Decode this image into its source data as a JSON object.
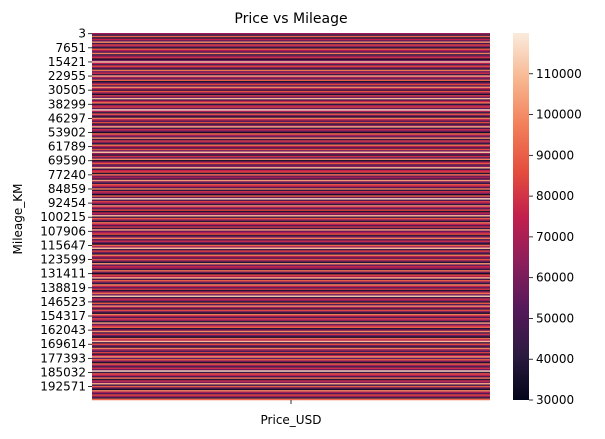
{
  "chart_data": {
    "type": "heatmap",
    "title": "Price vs Mileage",
    "xlabel": "",
    "ylabel": "Mileage_KM",
    "x_categories": [
      "Price_USD"
    ],
    "y_tick_labels": [
      "3",
      "7651",
      "15421",
      "22955",
      "30505",
      "38299",
      "46297",
      "53902",
      "61789",
      "69590",
      "77240",
      "84859",
      "92454",
      "100215",
      "107906",
      "115647",
      "123599",
      "131411",
      "138819",
      "146523",
      "154317",
      "162043",
      "169614",
      "177393",
      "185032",
      "192571"
    ],
    "row_count": 260,
    "values": [
      68000,
      45000,
      92000,
      38000,
      75000,
      55000,
      101000,
      47000,
      83000,
      62000,
      39000,
      88000,
      71000,
      52000,
      97000,
      44000,
      66000,
      79000,
      35000,
      58000,
      112000,
      73000,
      49000,
      86000,
      64000,
      41000,
      95000,
      57000,
      78000,
      46000,
      105000,
      69000,
      53000,
      90000,
      37000,
      61000,
      84000,
      50000,
      99000,
      72000,
      43000,
      87000,
      65000,
      36000,
      80000,
      56000,
      109000,
      48000,
      76000,
      93000,
      40000,
      67000,
      82000,
      54000,
      115000,
      70000,
      45000,
      89000,
      60000,
      38000,
      96000,
      74000,
      51000,
      85000,
      42000,
      63000,
      104000,
      47000,
      77000,
      59000,
      34000,
      91000,
      68000,
      55000,
      100000,
      44000,
      81000,
      62000,
      39000,
      94000,
      72000,
      48000,
      86000,
      57000,
      111000,
      66000,
      41000,
      79000,
      53000,
      98000,
      36000,
      70000,
      88000,
      50000,
      63000,
      107000,
      45000,
      75000,
      84000,
      38000,
      92000,
      58000,
      69000,
      47000,
      102000,
      61000,
      43000,
      87000,
      73000,
      52000,
      96000,
      40000,
      78000,
      64000,
      35000,
      90000,
      56000,
      114000,
      49000,
      82000,
      67000,
      42000,
      99000,
      71000,
      54000,
      85000,
      37000,
      76000,
      60000,
      108000,
      46000,
      89000,
      65000,
      39000,
      93000,
      74000,
      51000,
      80000,
      44000,
      103000,
      57000,
      70000,
      86000,
      41000,
      62000,
      97000,
      48000,
      79000,
      55000,
      36000,
      91000,
      68000,
      110000,
      45000,
      83000,
      59000,
      40000,
      95000,
      72000,
      50000,
      87000,
      63000,
      38000,
      101000,
      54000,
      77000,
      66000,
      43000,
      92000,
      58000,
      34000,
      84000,
      71000,
      106000,
      47000,
      89000,
      61000,
      42000,
      98000,
      75000,
      52000,
      81000,
      37000,
      69000,
      94000,
      56000,
      113000,
      46000,
      78000,
      64000,
      39000,
      88000,
      53000,
      100000,
      70000,
      44000,
      85000,
      60000,
      35000,
      96000,
      73000,
      49000,
      82000,
      66000,
      41000,
      104000,
      57000,
      76000,
      90000,
      38000,
      62000,
      99000,
      48000,
      80000,
      55000,
      36000,
      93000,
      71000,
      109000,
      45000,
      86000,
      59000,
      42000,
      97000,
      67000,
      51000,
      83000,
      40000,
      74000,
      102000,
      54000,
      88000,
      63000,
      37000,
      91000,
      68000,
      47000,
      79000,
      58000,
      116000,
      43000,
      85000,
      72000,
      50000,
      95000,
      39000,
      77000,
      61000,
      105000,
      46000,
      89000,
      56000,
      34000,
      98000,
      70000,
      52000,
      84000,
      65000,
      41000,
      92000
    ],
    "colorbar": {
      "min": 30000,
      "max": 120000,
      "ticks": [
        "40000",
        "50000",
        "60000",
        "70000",
        "80000",
        "90000",
        "100000",
        "110000"
      ],
      "extra_tick_labels": [
        "30000"
      ]
    },
    "colormap": "rocket",
    "grid": false,
    "legend": "colorbar-right"
  }
}
